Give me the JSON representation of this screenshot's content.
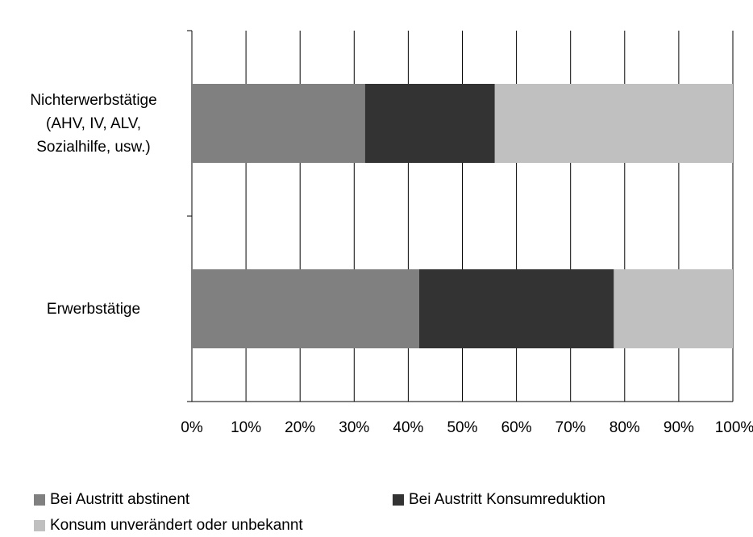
{
  "chart_data": {
    "type": "stacked-barh",
    "categories": [
      "Nichterwerbstätige (AHV, IV, ALV, Sozialhilfe, usw.)",
      "Erwerbstätige"
    ],
    "series": [
      {
        "name": "Bei Austritt abstinent",
        "color": "#808080",
        "values": [
          32,
          42
        ]
      },
      {
        "name": "Bei Austritt Konsumreduktion",
        "color": "#333333",
        "values": [
          24,
          36
        ]
      },
      {
        "name": "Konsum unverändert oder unbekannt",
        "color": "#c0c0c0",
        "values": [
          44,
          22
        ]
      }
    ],
    "xlim": [
      0,
      100
    ],
    "xticks": [
      {
        "value": 0,
        "label": "0%"
      },
      {
        "value": 10,
        "label": "10%"
      },
      {
        "value": 20,
        "label": "20%"
      },
      {
        "value": 30,
        "label": "30%"
      },
      {
        "value": 40,
        "label": "40%"
      },
      {
        "value": 50,
        "label": "50%"
      },
      {
        "value": 60,
        "label": "60%"
      },
      {
        "value": 70,
        "label": "70%"
      },
      {
        "value": 80,
        "label": "80%"
      },
      {
        "value": 90,
        "label": "90%"
      },
      {
        "value": 100,
        "label": "100%"
      }
    ],
    "grid": true
  }
}
